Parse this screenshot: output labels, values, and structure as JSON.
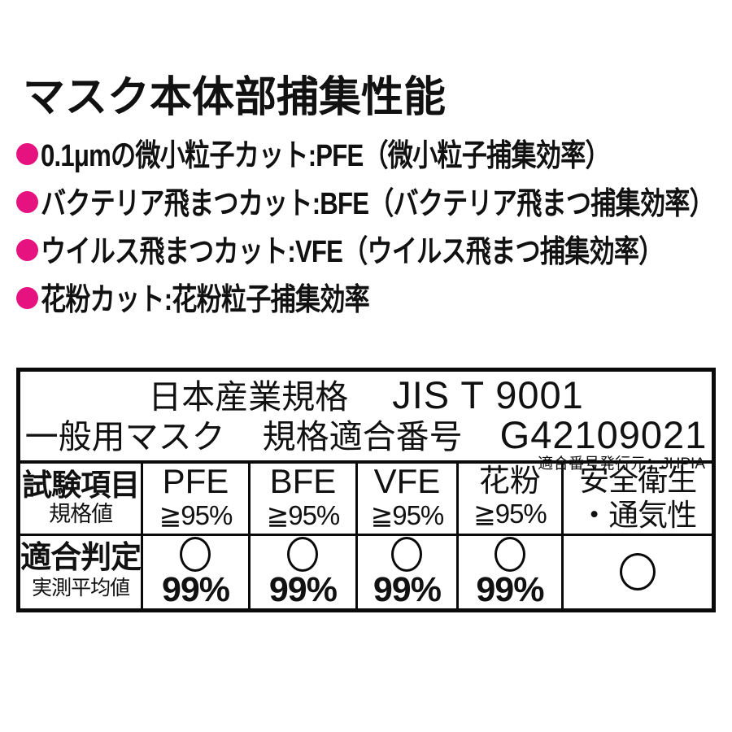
{
  "page": {
    "background": "#ffffff",
    "text_color": "#111111"
  },
  "accent": {
    "bullet_color": "#E5127F",
    "border_color": "#0a0a0a"
  },
  "title": "マスク本体部捕集性能",
  "bullets": [
    {
      "text": "0.1μmの微小粒子カット:PFE（微小粒子捕集効率）"
    },
    {
      "text": "バクテリア飛まつカット:BFE（バクテリア飛まつ捕集効率）"
    },
    {
      "text": "ウイルス飛まつカット:VFE（ウイルス飛まつ捕集効率）"
    },
    {
      "text": "花粉カット:花粉粒子捕集効率"
    }
  ],
  "table": {
    "standard": {
      "line1_left": "日本産業規格",
      "line1_right": "JIS T 9001",
      "line2_left": "一般用マスク",
      "line2_mid": "規格適合番号",
      "line2_right": "G42109021",
      "issuer_note": "適合番号発行元：JHPIA"
    },
    "header_row": {
      "label": "試験項目",
      "sublabel": "規格値",
      "columns": [
        {
          "name": "PFE",
          "spec": "≧95%"
        },
        {
          "name": "BFE",
          "spec": "≧95%"
        },
        {
          "name": "VFE",
          "spec": "≧95%"
        },
        {
          "name": "花粉",
          "spec": "≧95%"
        },
        {
          "name": "安全衛生",
          "name2": "・通気性"
        }
      ]
    },
    "result_row": {
      "label": "適合判定",
      "sublabel": "実測平均値",
      "results": [
        {
          "mark": "pass-circle",
          "value": "99%"
        },
        {
          "mark": "pass-circle",
          "value": "99%"
        },
        {
          "mark": "pass-circle",
          "value": "99%"
        },
        {
          "mark": "pass-circle",
          "value": "99%"
        },
        {
          "mark": "pass-circle",
          "value": ""
        }
      ]
    }
  }
}
